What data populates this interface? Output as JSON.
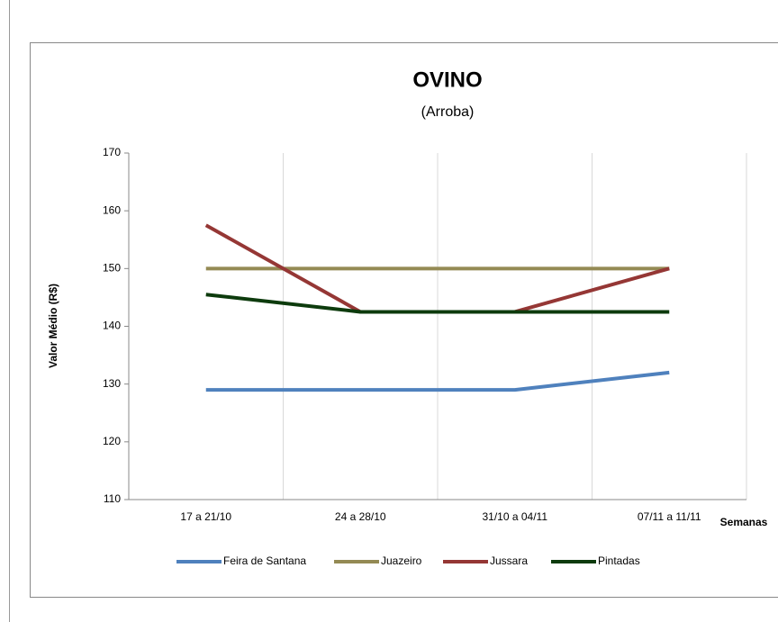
{
  "chart_data": {
    "type": "line",
    "title": "OVINO",
    "subtitle": "(Arroba)",
    "y_label": "Valor Médio (R$)",
    "x_label": "Semanas",
    "categories": [
      "17 a 21/10",
      "24 a 28/10",
      "31/10 a 04/11",
      "07/11 a 11/11"
    ],
    "series": [
      {
        "name": "Feira de Santana",
        "color": "#4f81bd",
        "values": [
          129,
          129,
          129,
          132
        ]
      },
      {
        "name": "Juazeiro",
        "color": "#948a54",
        "values": [
          150,
          150,
          150,
          150
        ]
      },
      {
        "name": "Jussara",
        "color": "#953735",
        "values": [
          157.5,
          142.5,
          142.5,
          150
        ]
      },
      {
        "name": "Pintadas",
        "color": "#0d3b0d",
        "values": [
          145.5,
          142.5,
          142.5,
          142.5
        ]
      }
    ],
    "ylim": [
      110,
      170
    ],
    "yticks": [
      110,
      120,
      130,
      140,
      150,
      160,
      170
    ],
    "grid": true,
    "legend": "bottom"
  }
}
